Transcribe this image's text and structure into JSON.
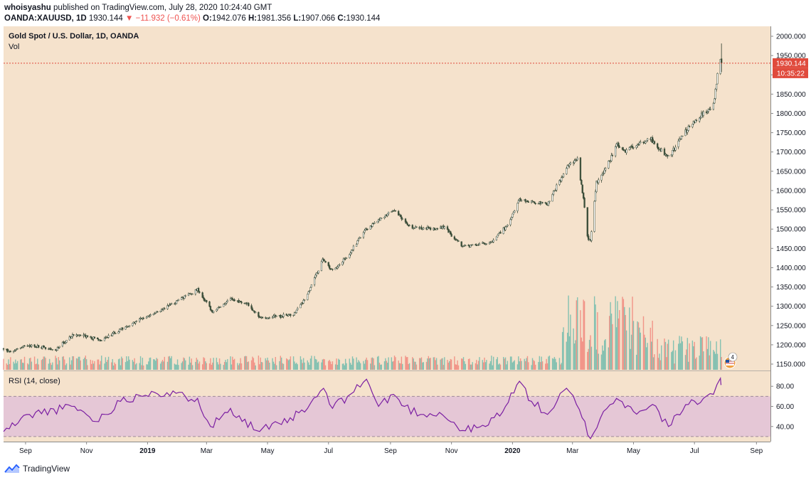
{
  "header": {
    "author": "whoisyashu",
    "published_text": "published on TradingView.com, July 28, 2020 10:24:40 GMT",
    "symbol": "OANDA:XAUUSD, 1D",
    "last": "1930.144",
    "change_arrow": "▼",
    "change": "−11.932 (−0.61%)",
    "o_label": "O:",
    "o": "1942.076",
    "h_label": "H:",
    "h": "1981.356",
    "l_label": "L:",
    "l": "1907.066",
    "c_label": "C:",
    "c": "1930.144"
  },
  "footer": {
    "brand": "TradingView"
  },
  "colors": {
    "bg": "#f5e2cc",
    "up": "#26a69a",
    "down": "#ef5350",
    "candle_body": "#3c4f3a",
    "rsi_line": "#7b1fa2",
    "rsi_band": "#e5c7d6",
    "price_line": "#e04a3c"
  },
  "chart_data": {
    "type": "candlestick",
    "title": "Gold Spot / U.S. Dollar, 1D, OANDA",
    "volume_label": "Vol",
    "price_axis_ticks": [
      "2000.000",
      "1950.000",
      "1900.000",
      "1850.000",
      "1800.000",
      "1750.000",
      "1700.000",
      "1650.000",
      "1600.000",
      "1550.000",
      "1500.000",
      "1450.000",
      "1400.000",
      "1350.000",
      "1300.000",
      "1250.000",
      "1200.000",
      "1150.000"
    ],
    "ylim": [
      1140,
      2010
    ],
    "last_price_label": "1930.144",
    "countdown_label": "10:35:22",
    "x_axis_ticks": [
      "Sep",
      "Nov",
      "2019",
      "Mar",
      "May",
      "Jul",
      "Sep",
      "Nov",
      "2020",
      "Mar",
      "May",
      "Jul",
      "Sep"
    ],
    "x_range": [
      "2018-08-10",
      "2020-09-15"
    ],
    "price_path": [
      [
        "2018-08-10",
        1190
      ],
      [
        "2018-08-16",
        1180
      ],
      [
        "2018-09-01",
        1200
      ],
      [
        "2018-10-01",
        1187
      ],
      [
        "2018-10-20",
        1230
      ],
      [
        "2018-11-15",
        1212
      ],
      [
        "2018-12-20",
        1260
      ],
      [
        "2019-01-25",
        1305
      ],
      [
        "2019-02-20",
        1342
      ],
      [
        "2019-03-07",
        1285
      ],
      [
        "2019-03-25",
        1318
      ],
      [
        "2019-04-10",
        1310
      ],
      [
        "2019-04-23",
        1270
      ],
      [
        "2019-05-20",
        1275
      ],
      [
        "2019-05-28",
        1280
      ],
      [
        "2019-06-10",
        1330
      ],
      [
        "2019-06-25",
        1420
      ],
      [
        "2019-07-05",
        1392
      ],
      [
        "2019-07-19",
        1425
      ],
      [
        "2019-08-07",
        1500
      ],
      [
        "2019-09-04",
        1550
      ],
      [
        "2019-09-20",
        1508
      ],
      [
        "2019-10-05",
        1500
      ],
      [
        "2019-10-25",
        1505
      ],
      [
        "2019-11-12",
        1455
      ],
      [
        "2019-12-10",
        1465
      ],
      [
        "2019-12-27",
        1510
      ],
      [
        "2020-01-08",
        1575
      ],
      [
        "2020-02-05",
        1565
      ],
      [
        "2020-02-24",
        1660
      ],
      [
        "2020-03-06",
        1680
      ],
      [
        "2020-03-12",
        1580
      ],
      [
        "2020-03-16",
        1480
      ],
      [
        "2020-03-19",
        1470
      ],
      [
        "2020-03-25",
        1620
      ],
      [
        "2020-04-10",
        1690
      ],
      [
        "2020-04-14",
        1725
      ],
      [
        "2020-04-20",
        1700
      ],
      [
        "2020-05-18",
        1735
      ],
      [
        "2020-06-05",
        1685
      ],
      [
        "2020-06-25",
        1765
      ],
      [
        "2020-07-10",
        1800
      ],
      [
        "2020-07-20",
        1820
      ],
      [
        "2020-07-24",
        1900
      ],
      [
        "2020-07-27",
        1941
      ],
      [
        "2020-07-28",
        1930
      ]
    ],
    "last_candle": {
      "date": "2020-07-28",
      "open": 1942.076,
      "high": 1981.356,
      "low": 1907.066,
      "close": 1930.144
    },
    "rsi": {
      "label": "RSI (14, close)",
      "ticks": [
        "80.00",
        "60.00",
        "40.00"
      ],
      "ylim": [
        25,
        95
      ],
      "band": [
        30,
        70
      ],
      "path": [
        [
          "2018-08-10",
          35
        ],
        [
          "2018-09-05",
          52
        ],
        [
          "2018-10-20",
          60
        ],
        [
          "2018-11-10",
          45
        ],
        [
          "2018-12-05",
          65
        ],
        [
          "2019-01-05",
          75
        ],
        [
          "2019-02-20",
          68
        ],
        [
          "2019-03-05",
          40
        ],
        [
          "2019-03-25",
          58
        ],
        [
          "2019-04-20",
          36
        ],
        [
          "2019-05-15",
          42
        ],
        [
          "2019-06-10",
          58
        ],
        [
          "2019-06-26",
          78
        ],
        [
          "2019-07-05",
          58
        ],
        [
          "2019-07-20",
          70
        ],
        [
          "2019-08-08",
          87
        ],
        [
          "2019-08-20",
          60
        ],
        [
          "2019-09-04",
          72
        ],
        [
          "2019-09-15",
          60
        ],
        [
          "2019-10-01",
          52
        ],
        [
          "2019-10-20",
          54
        ],
        [
          "2019-11-12",
          36
        ],
        [
          "2019-12-05",
          40
        ],
        [
          "2019-12-25",
          60
        ],
        [
          "2020-01-08",
          85
        ],
        [
          "2020-01-20",
          65
        ],
        [
          "2020-02-05",
          52
        ],
        [
          "2020-02-24",
          78
        ],
        [
          "2020-03-05",
          62
        ],
        [
          "2020-03-19",
          28
        ],
        [
          "2020-04-01",
          55
        ],
        [
          "2020-04-14",
          68
        ],
        [
          "2020-05-01",
          55
        ],
        [
          "2020-05-20",
          62
        ],
        [
          "2020-06-05",
          40
        ],
        [
          "2020-06-25",
          62
        ],
        [
          "2020-07-10",
          68
        ],
        [
          "2020-07-20",
          72
        ],
        [
          "2020-07-27",
          88
        ],
        [
          "2020-07-28",
          82
        ]
      ]
    }
  }
}
